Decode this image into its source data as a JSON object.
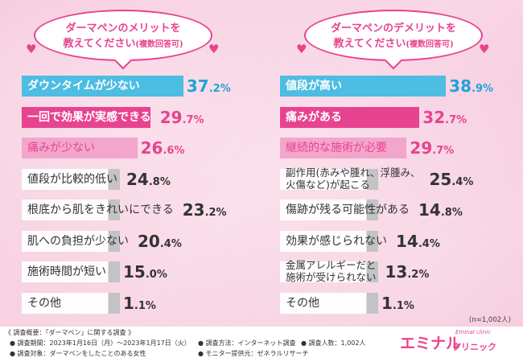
{
  "left_panel": {
    "question_line1": "ダーマペンのメリットを",
    "question_line2_main": "教えてください",
    "question_line2_small": "(複数回答可)"
  },
  "right_panel": {
    "question_line1": "ダーマペンのデメリットを",
    "question_line2_main": "教えてください",
    "question_line2_small": "(複数回答可)"
  },
  "sample_note": "(n=1,002人)",
  "footer": {
    "heading": "《 調査概要：「ダーマペン」に関する調査 》",
    "period": "● 調査期間：2023年1月16日（月）〜2023年1月17日（火）",
    "target": "● 調査対象：ダーマペンをしたことのある女性",
    "method": "● 調査方法：インターネット調査",
    "monitor": "● モニター提供元：ゼネラルリサーチ",
    "count": "● 調査人数：1,002人"
  },
  "logo": {
    "main": "エミナル",
    "sub": "クリニック",
    "small": "Eminal clinic"
  },
  "colors": {
    "blue": "#4dbde1",
    "pink": "#e8438f",
    "light_pink": "#f3a6cb",
    "gray": "#c7c7c7",
    "white": "#ffffff",
    "pct_blue": "#1fa3d6",
    "pct_pink": "#e8438f",
    "pct_gray": "#333333"
  },
  "chart_data": [
    {
      "type": "bar",
      "title": "ダーマペンのメリットを教えてください(複数回答可)",
      "categories": [
        "ダウンタイムが少ない",
        "一回で効果が実感できる",
        "痛みが少ない",
        "値段が比較的低い",
        "根底から肌をきれいにできる",
        "肌への負担が少ない",
        "施術時間が短い",
        "その他"
      ],
      "values": [
        37.2,
        29.7,
        26.6,
        24.8,
        23.2,
        20.4,
        15.0,
        1.1
      ],
      "value_labels": [
        [
          "37",
          ".2%"
        ],
        [
          "29",
          ".7%"
        ],
        [
          "26",
          ".6%"
        ],
        [
          "24",
          ".8%"
        ],
        [
          "23",
          ".2%"
        ],
        [
          "20",
          ".4%"
        ],
        [
          "15",
          ".0%"
        ],
        [
          "1",
          ".1%"
        ]
      ],
      "styles": [
        "blue",
        "pink",
        "light",
        "gray",
        "gray",
        "gray",
        "gray",
        "gray"
      ]
    },
    {
      "type": "bar",
      "title": "ダーマペンのデメリットを教えてください(複数回答可)",
      "categories": [
        "値段が高い",
        "痛みがある",
        "継続的な施術が必要",
        "副作用(赤みや腫れ、浮腫み、\n火傷など)が起こる",
        "傷跡が残る可能性がある",
        "効果が感じられない",
        "金属アレルギーだと\n施術が受けられない",
        "その他"
      ],
      "values": [
        38.9,
        32.7,
        29.7,
        25.4,
        14.8,
        14.4,
        13.2,
        1.1
      ],
      "value_labels": [
        [
          "38",
          ".9%"
        ],
        [
          "32",
          ".7%"
        ],
        [
          "29",
          ".7%"
        ],
        [
          "25",
          ".4%"
        ],
        [
          "14",
          ".8%"
        ],
        [
          "14",
          ".4%"
        ],
        [
          "13",
          ".2%"
        ],
        [
          "1",
          ".1%"
        ]
      ],
      "styles": [
        "blue",
        "pink",
        "light",
        "gray",
        "gray",
        "gray",
        "gray",
        "gray"
      ]
    }
  ]
}
